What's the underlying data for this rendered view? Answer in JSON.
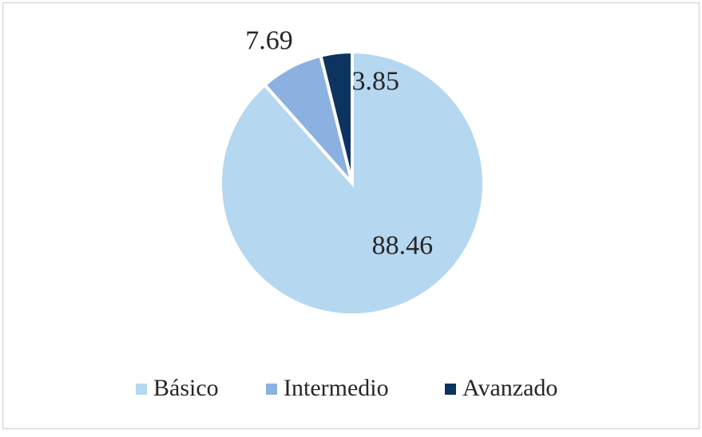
{
  "chart_data": {
    "type": "pie",
    "categories": [
      "Básico",
      "Intermedio",
      "Avanzado"
    ],
    "values": [
      88.46,
      7.69,
      3.85
    ],
    "colors": [
      "#b5d7f0",
      "#8bb1e0",
      "#0d3360"
    ],
    "legend": "bottom"
  }
}
